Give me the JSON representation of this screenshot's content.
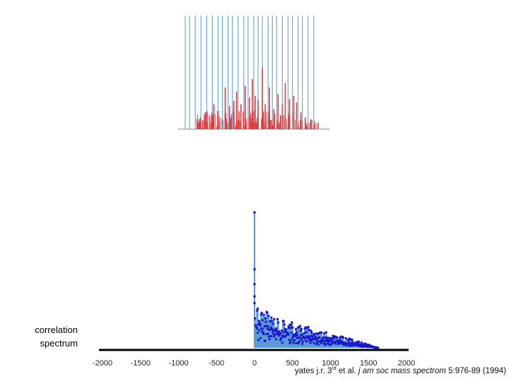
{
  "side_label": {
    "line1": "correlation",
    "line2": "spectrum"
  },
  "citation": {
    "part1": "yates j.r. 3",
    "sup": "rd",
    "part2": " et al. ",
    "journal": "j am soc mass spectrom",
    "part3": " 5:976-89 (1994)"
  },
  "colors": {
    "experimental": "#e03c3c",
    "theoretical": "#6fa8dc",
    "correlation_fill": "#5b9bd5",
    "correlation_points": "#1a1acc",
    "axis": "#000000"
  },
  "chart_data": [
    {
      "type": "bar",
      "description": "experimental spectrum (red) overlaid with theoretical fragment lines (blue)",
      "theoretical_line_positions": [
        0.02,
        0.05,
        0.09,
        0.13,
        0.17,
        0.21,
        0.25,
        0.28,
        0.32,
        0.35,
        0.39,
        0.43,
        0.46,
        0.5,
        0.53,
        0.56,
        0.6,
        0.63,
        0.66,
        0.7,
        0.74,
        0.77,
        0.81,
        0.84,
        0.88,
        0.92
      ],
      "experimental_peak_positions": [
        0.12,
        0.16,
        0.19,
        0.22,
        0.25,
        0.3,
        0.33,
        0.36,
        0.38,
        0.41,
        0.44,
        0.47,
        0.49,
        0.51,
        0.53,
        0.56,
        0.58,
        0.61,
        0.64,
        0.67,
        0.7,
        0.72,
        0.75,
        0.78,
        0.8,
        0.83,
        0.86,
        0.9,
        0.95
      ],
      "experimental_peak_heights": [
        0.12,
        0.2,
        0.16,
        0.3,
        0.22,
        0.5,
        0.28,
        0.34,
        0.45,
        0.3,
        0.52,
        0.38,
        0.6,
        0.4,
        0.35,
        0.74,
        0.3,
        0.5,
        0.24,
        0.42,
        0.3,
        0.55,
        0.36,
        0.4,
        0.32,
        0.2,
        0.14,
        0.12,
        0.08
      ]
    },
    {
      "type": "line",
      "description": "cross-correlation spectrum",
      "x_ticks": [
        -2000,
        -1500,
        -1000,
        -500,
        0,
        500,
        1000,
        1500,
        2000
      ],
      "xlim": [
        -2000,
        2000
      ],
      "peak_at_zero": 1.0,
      "envelope": {
        "x": [
          0,
          100,
          300,
          500,
          700,
          1000,
          1300,
          1500,
          1600
        ],
        "y": [
          0.28,
          0.24,
          0.19,
          0.16,
          0.13,
          0.09,
          0.05,
          0.02,
          0.0
        ]
      }
    }
  ]
}
